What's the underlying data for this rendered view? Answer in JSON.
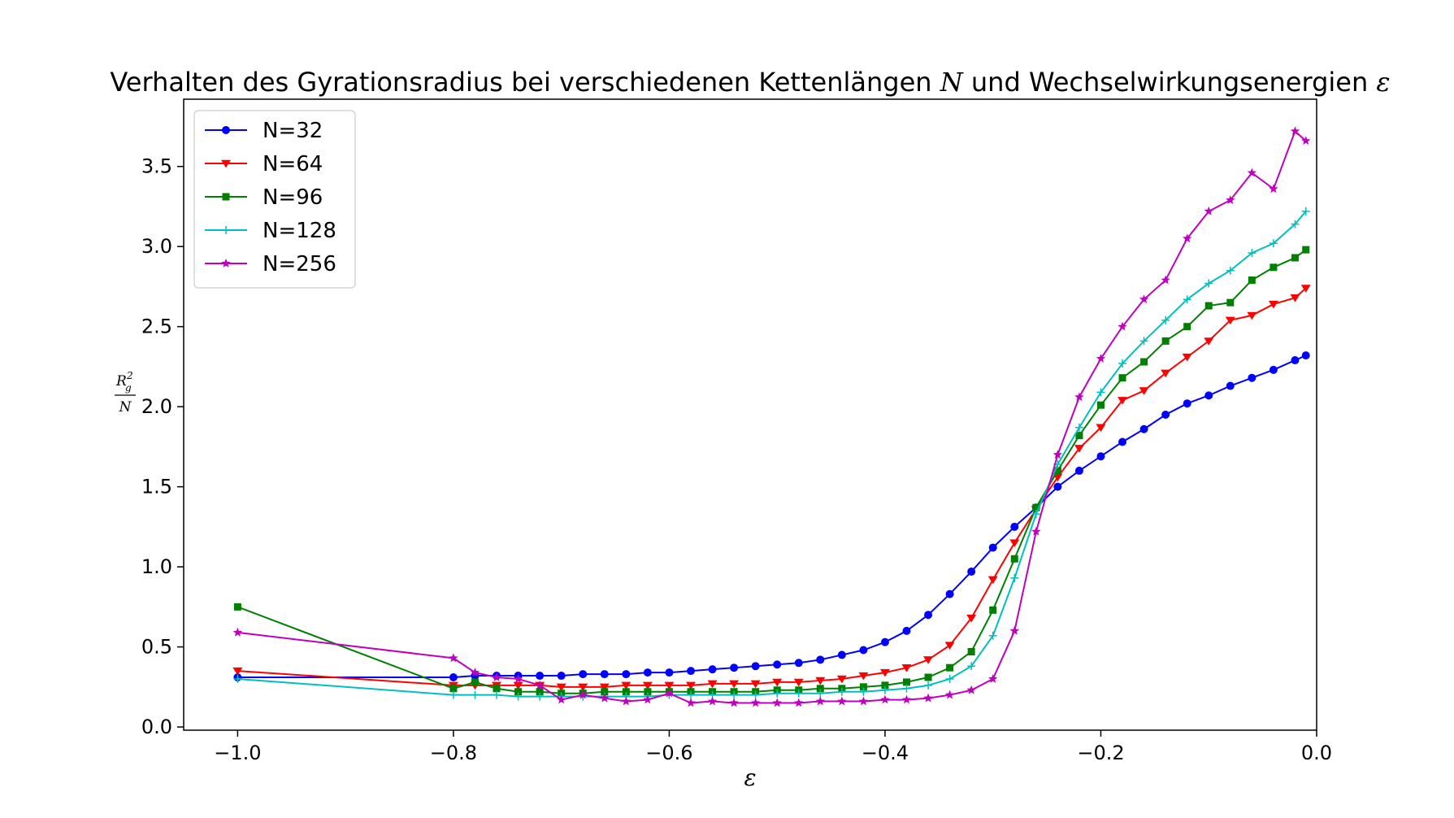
{
  "chart_data": {
    "type": "line",
    "title": "Verhalten des Gyrationsradius bei verschiedenen Kettenlängen N und Wechselwirkungsenergien ε",
    "title_plain": "Verhalten des Gyrationsradius bei verschiedenen Kettenlängen ",
    "title_N": "N",
    "title_mid": " und Wechselwirkungsenergien ",
    "title_eps": "ε",
    "xlabel": "ε",
    "ylabel": {
      "numerator_base": "R",
      "numerator_sub": "g",
      "numerator_sup": "2",
      "denominator": "N"
    },
    "xlim": [
      -1.05,
      0.0
    ],
    "ylim": [
      -0.02,
      3.92
    ],
    "xticks": [
      -1.0,
      -0.8,
      -0.6,
      -0.4,
      -0.2,
      0.0
    ],
    "xtick_labels": [
      "−1.0",
      "−0.8",
      "−0.6",
      "−0.4",
      "−0.2",
      "0.0"
    ],
    "yticks": [
      0.0,
      0.5,
      1.0,
      1.5,
      2.0,
      2.5,
      3.0,
      3.5
    ],
    "ytick_labels": [
      "0.0",
      "0.5",
      "1.0",
      "1.5",
      "2.0",
      "2.5",
      "3.0",
      "3.5"
    ],
    "legend_position": "top-left",
    "grid": false,
    "x": [
      -1.0,
      -0.8,
      -0.78,
      -0.76,
      -0.74,
      -0.72,
      -0.7,
      -0.68,
      -0.66,
      -0.64,
      -0.62,
      -0.6,
      -0.58,
      -0.56,
      -0.54,
      -0.52,
      -0.5,
      -0.48,
      -0.46,
      -0.44,
      -0.42,
      -0.4,
      -0.38,
      -0.36,
      -0.34,
      -0.32,
      -0.3,
      -0.28,
      -0.26,
      -0.24,
      -0.22,
      -0.2,
      -0.18,
      -0.16,
      -0.14,
      -0.12,
      -0.1,
      -0.08,
      -0.06,
      -0.04,
      -0.02,
      -0.01
    ],
    "series": [
      {
        "name": "N=32",
        "color": "#0000ff",
        "marker": "circle",
        "values": [
          0.31,
          0.31,
          0.32,
          0.32,
          0.32,
          0.32,
          0.32,
          0.33,
          0.33,
          0.33,
          0.34,
          0.34,
          0.35,
          0.36,
          0.37,
          0.38,
          0.39,
          0.4,
          0.42,
          0.45,
          0.48,
          0.53,
          0.6,
          0.7,
          0.83,
          0.97,
          1.12,
          1.25,
          1.37,
          1.5,
          1.6,
          1.69,
          1.78,
          1.86,
          1.95,
          2.02,
          2.07,
          2.13,
          2.18,
          2.23,
          2.29,
          2.32
        ]
      },
      {
        "name": "N=64",
        "color": "#ff0000",
        "marker": "triangle-down",
        "values": [
          0.35,
          0.26,
          0.26,
          0.26,
          0.26,
          0.26,
          0.25,
          0.25,
          0.25,
          0.26,
          0.26,
          0.26,
          0.26,
          0.27,
          0.27,
          0.27,
          0.28,
          0.28,
          0.29,
          0.3,
          0.32,
          0.34,
          0.37,
          0.42,
          0.51,
          0.68,
          0.92,
          1.15,
          1.36,
          1.56,
          1.74,
          1.87,
          2.04,
          2.1,
          2.21,
          2.31,
          2.41,
          2.54,
          2.57,
          2.64,
          2.68,
          2.74
        ]
      },
      {
        "name": "N=96",
        "color": "#008000",
        "marker": "square",
        "values": [
          0.75,
          0.24,
          0.28,
          0.24,
          0.22,
          0.22,
          0.21,
          0.21,
          0.22,
          0.22,
          0.22,
          0.22,
          0.22,
          0.22,
          0.22,
          0.22,
          0.23,
          0.23,
          0.24,
          0.24,
          0.25,
          0.26,
          0.28,
          0.31,
          0.37,
          0.47,
          0.73,
          1.05,
          1.37,
          1.6,
          1.82,
          2.01,
          2.18,
          2.28,
          2.41,
          2.5,
          2.63,
          2.65,
          2.79,
          2.87,
          2.93,
          2.98
        ]
      },
      {
        "name": "N=128",
        "color": "#00bfbf",
        "marker": "plus",
        "values": [
          0.3,
          0.2,
          0.2,
          0.2,
          0.19,
          0.19,
          0.19,
          0.19,
          0.19,
          0.19,
          0.19,
          0.2,
          0.2,
          0.2,
          0.2,
          0.2,
          0.21,
          0.21,
          0.21,
          0.22,
          0.22,
          0.23,
          0.24,
          0.26,
          0.3,
          0.38,
          0.57,
          0.93,
          1.33,
          1.64,
          1.87,
          2.09,
          2.27,
          2.41,
          2.54,
          2.67,
          2.77,
          2.85,
          2.96,
          3.02,
          3.14,
          3.22
        ]
      },
      {
        "name": "N=256",
        "color": "#bf00bf",
        "marker": "star",
        "values": [
          0.59,
          0.43,
          0.34,
          0.31,
          0.3,
          0.26,
          0.17,
          0.2,
          0.18,
          0.16,
          0.17,
          0.21,
          0.15,
          0.16,
          0.15,
          0.15,
          0.15,
          0.15,
          0.16,
          0.16,
          0.16,
          0.17,
          0.17,
          0.18,
          0.2,
          0.23,
          0.3,
          0.6,
          1.22,
          1.7,
          2.06,
          2.3,
          2.5,
          2.67,
          2.79,
          3.05,
          3.22,
          3.29,
          3.46,
          3.36,
          3.72,
          3.66
        ]
      }
    ]
  }
}
